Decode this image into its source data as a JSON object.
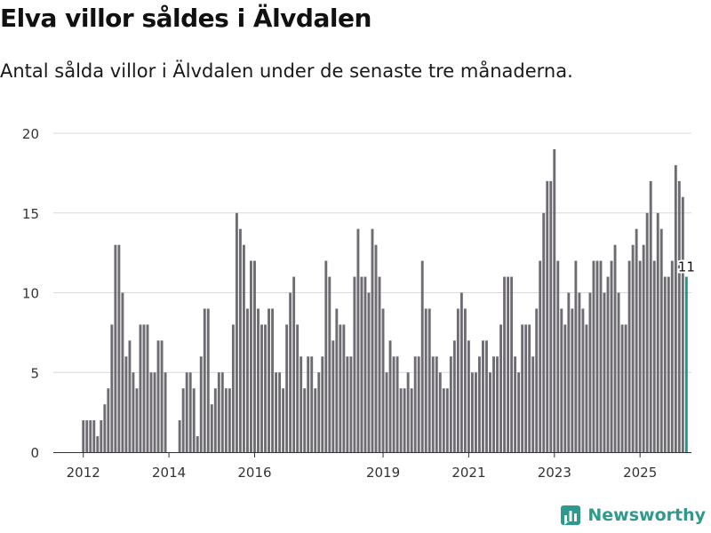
{
  "title": "Elva villor såldes i Älvdalen",
  "subtitle": "Antal sålda villor i Älvdalen under de senaste tre månaderna.",
  "brand": {
    "name": "Newsworthy",
    "icon": "newsworthy-logo-icon"
  },
  "colors": {
    "bar": "#6e6c72",
    "highlight": "#1b9a8c",
    "grid": "#d9d9d9",
    "axis": "#333333",
    "brand": "#2e9a8e"
  },
  "chart_data": {
    "type": "bar",
    "title": "Elva villor såldes i Älvdalen",
    "xlabel": "",
    "ylabel": "",
    "ylim": [
      0,
      20
    ],
    "yticks": [
      0,
      5,
      10,
      15,
      20
    ],
    "x_range": [
      2011.3,
      2026.2
    ],
    "xticks": [
      {
        "label": "2012",
        "value": 2012.0
      },
      {
        "label": "2014",
        "value": 2014.0
      },
      {
        "label": "2016",
        "value": 2016.0
      },
      {
        "label": "2019",
        "value": 2019.0
      },
      {
        "label": "2021",
        "value": 2021.0
      },
      {
        "label": "2023",
        "value": 2023.0
      },
      {
        "label": "2025",
        "value": 2025.0
      }
    ],
    "start": 2012.0,
    "step": 0.08333,
    "values": [
      2,
      2,
      2,
      2,
      1,
      2,
      3,
      4,
      8,
      13,
      13,
      10,
      6,
      7,
      5,
      4,
      8,
      8,
      8,
      5,
      5,
      7,
      7,
      5,
      0,
      0,
      0,
      2,
      4,
      5,
      5,
      4,
      1,
      6,
      9,
      9,
      3,
      4,
      5,
      5,
      4,
      4,
      8,
      15,
      14,
      13,
      9,
      12,
      12,
      9,
      8,
      8,
      9,
      9,
      5,
      5,
      4,
      8,
      10,
      11,
      8,
      6,
      4,
      6,
      6,
      4,
      5,
      6,
      12,
      11,
      7,
      9,
      8,
      8,
      6,
      6,
      11,
      14,
      11,
      11,
      10,
      14,
      13,
      11,
      9,
      5,
      7,
      6,
      6,
      4,
      4,
      5,
      4,
      6,
      6,
      12,
      9,
      9,
      6,
      6,
      5,
      4,
      4,
      6,
      7,
      9,
      10,
      9,
      7,
      5,
      5,
      6,
      7,
      7,
      5,
      6,
      6,
      8,
      11,
      11,
      11,
      6,
      5,
      8,
      8,
      8,
      6,
      9,
      12,
      15,
      17,
      17,
      19,
      12,
      9,
      8,
      10,
      9,
      12,
      10,
      9,
      8,
      10,
      12,
      12,
      12,
      10,
      11,
      12,
      13,
      10,
      8,
      8,
      12,
      13,
      14,
      12,
      13,
      15,
      17,
      12,
      15,
      14,
      11,
      11,
      12,
      18,
      17,
      16,
      11
    ],
    "highlight_last": true,
    "annotation": {
      "label": "11",
      "value": 11
    }
  }
}
